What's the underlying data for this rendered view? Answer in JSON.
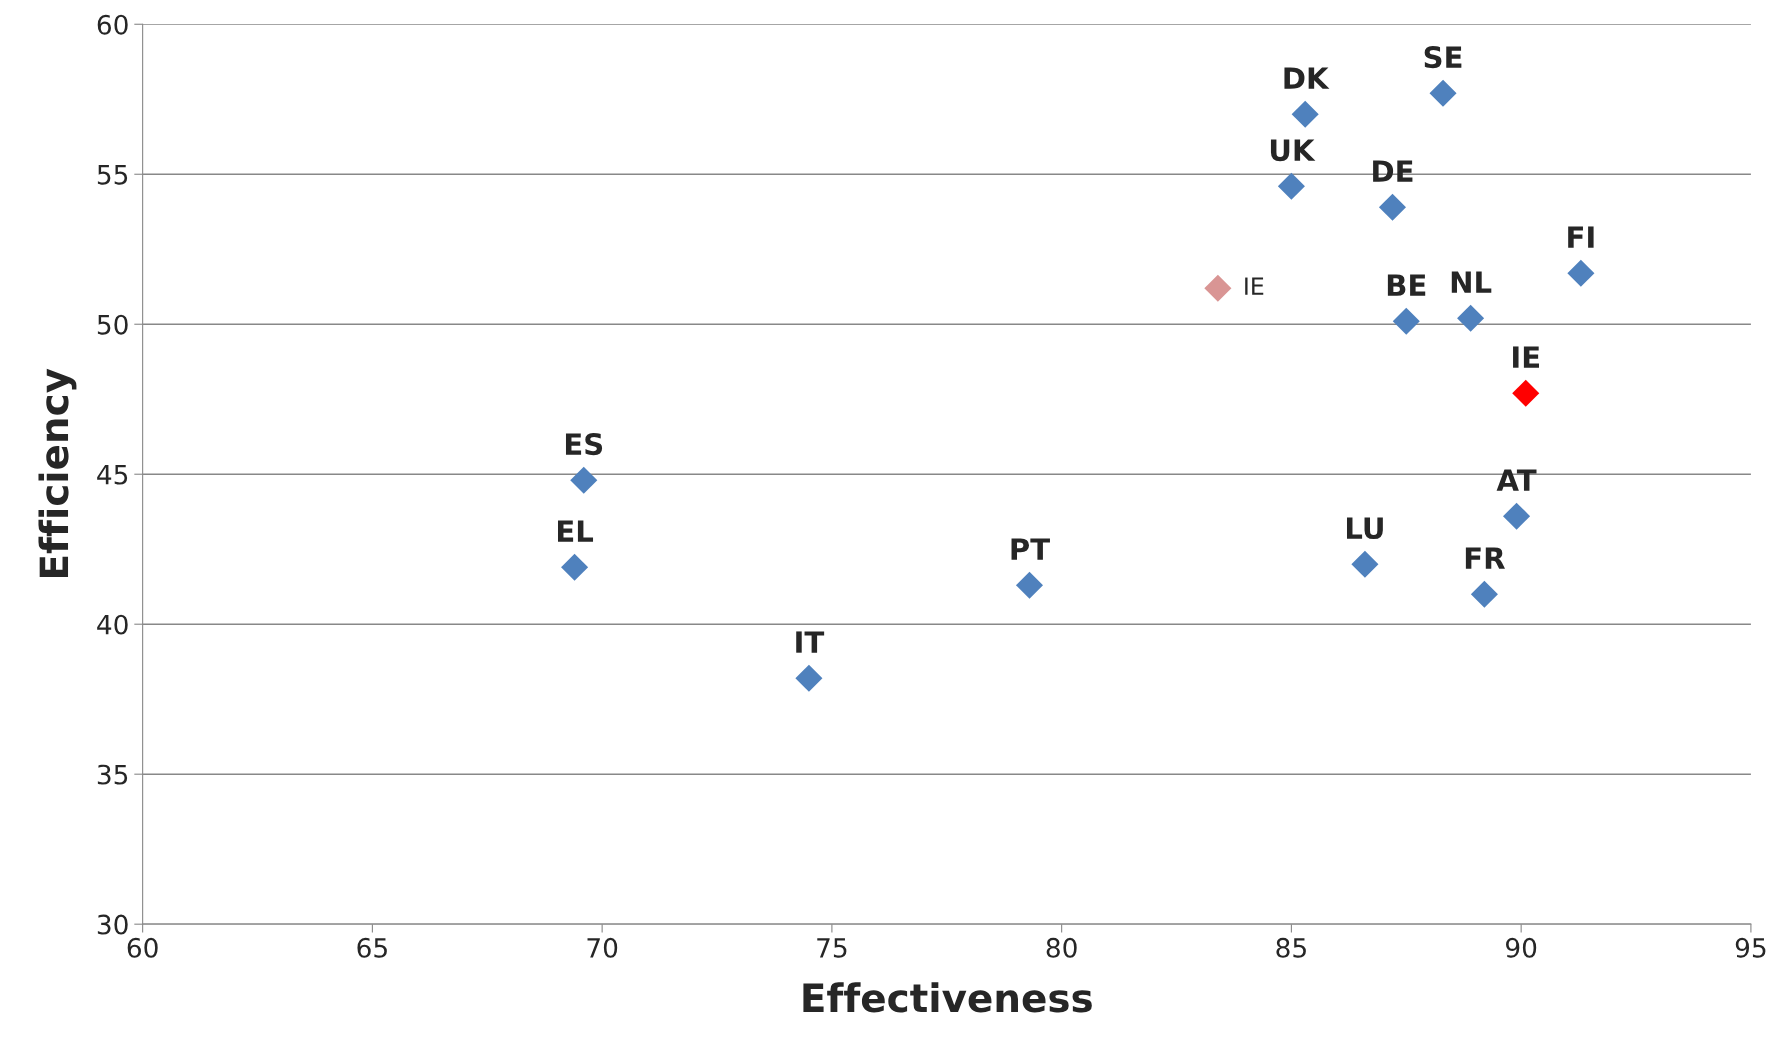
{
  "chart_data": {
    "type": "scatter",
    "xlabel": "Effectiveness",
    "ylabel": "Efficiency",
    "xlim": [
      60,
      95
    ],
    "ylim": [
      30,
      60
    ],
    "xticks": [
      60,
      65,
      70,
      75,
      80,
      85,
      90,
      95
    ],
    "yticks": [
      30,
      35,
      40,
      45,
      50,
      55,
      60
    ],
    "grid": "y",
    "marker": "diamond",
    "series": [
      {
        "x": [
          85.3,
          88.3,
          85.0,
          87.2,
          91.3,
          87.5,
          88.9,
          90.1,
          69.6,
          89.9,
          69.4,
          86.6,
          79.3,
          89.2,
          74.5
        ],
        "values": [
          57.0,
          57.7,
          54.6,
          53.9,
          51.7,
          50.1,
          50.2,
          47.7,
          44.8,
          43.6,
          41.9,
          42.0,
          41.3,
          41.0,
          38.2
        ],
        "colors": [
          "#4f81bd",
          "#4f81bd",
          "#4f81bd",
          "#4f81bd",
          "#4f81bd",
          "#4f81bd",
          "#4f81bd",
          "#ff0000",
          "#4f81bd",
          "#4f81bd",
          "#4f81bd",
          "#4f81bd",
          "#4f81bd",
          "#4f81bd",
          "#4f81bd"
        ]
      },
      {
        "x": [
          83.4
        ],
        "values": [
          51.2
        ],
        "color": "#d99594"
      }
    ],
    "annotations": [
      {
        "text": "DK",
        "x": 85.3,
        "y": 57.0
      },
      {
        "text": "SE",
        "x": 88.3,
        "y": 57.7
      },
      {
        "text": "UK",
        "x": 85.0,
        "y": 54.6
      },
      {
        "text": "DE",
        "x": 87.2,
        "y": 53.9
      },
      {
        "text": "FI",
        "x": 91.3,
        "y": 51.7
      },
      {
        "text": "BE",
        "x": 87.5,
        "y": 50.1
      },
      {
        "text": "NL",
        "x": 88.9,
        "y": 50.2
      },
      {
        "text": "IE",
        "x": 90.1,
        "y": 47.7
      },
      {
        "text": "ES",
        "x": 69.6,
        "y": 44.8
      },
      {
        "text": "AT",
        "x": 89.9,
        "y": 43.6
      },
      {
        "text": "EL",
        "x": 69.4,
        "y": 41.9
      },
      {
        "text": "LU",
        "x": 86.6,
        "y": 42.0
      },
      {
        "text": "PT",
        "x": 79.3,
        "y": 41.3
      },
      {
        "text": "FR",
        "x": 89.2,
        "y": 41.0
      },
      {
        "text": "IT",
        "x": 74.5,
        "y": 38.2
      },
      {
        "text": "IE",
        "x": 83.4,
        "y": 51.2
      }
    ]
  }
}
